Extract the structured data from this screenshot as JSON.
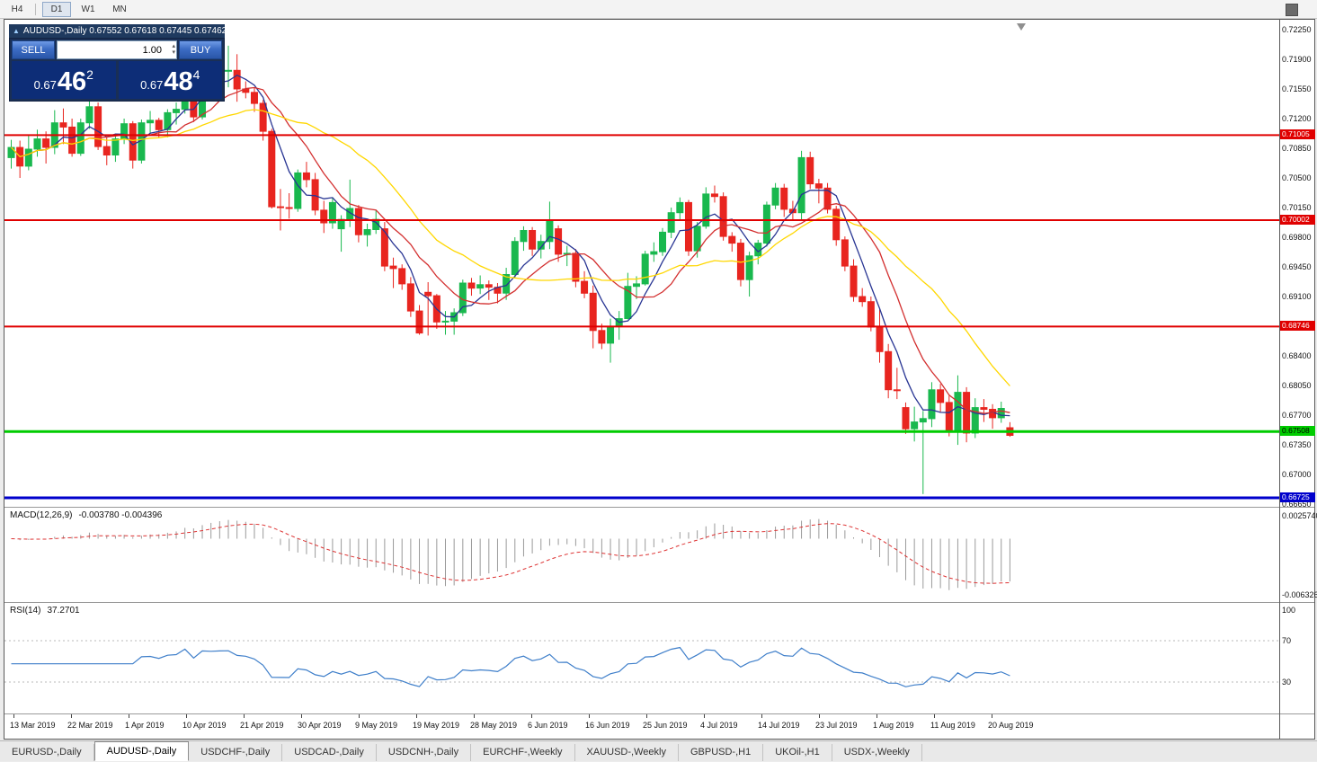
{
  "toolbar": {
    "timeframes": [
      {
        "label": "H4",
        "active": false
      },
      {
        "label": "D1",
        "active": true
      },
      {
        "label": "W1",
        "active": false
      },
      {
        "label": "MN",
        "active": false
      }
    ]
  },
  "window": {
    "title": "AUDUSD-,Daily 0.67552 0.67618 0.67445 0.67462"
  },
  "icons": {
    "chart_icon": "▲",
    "spinner_up_icon": "▴",
    "spinner_down_icon": "▾"
  },
  "trade_panel": {
    "sell_label": "SELL",
    "buy_label": "BUY",
    "volume": "1.00",
    "sell_price": {
      "prefix": "0.67",
      "big": "46",
      "sup": "2"
    },
    "buy_price": {
      "prefix": "0.67",
      "big": "48",
      "sup": "4"
    }
  },
  "chart_data": {
    "type": "candlestick",
    "symbol": "AUDUSD-",
    "timeframe": "Daily",
    "last_ohlc": {
      "open": 0.67552,
      "high": 0.67618,
      "low": 0.67445,
      "close": 0.67462
    },
    "up_color": "#19b84e",
    "down_color": "#e8251f",
    "candles": [
      [
        0.7074,
        0.7095,
        0.7061,
        0.7086
      ],
      [
        0.7086,
        0.7094,
        0.705,
        0.7064
      ],
      [
        0.7064,
        0.71,
        0.7059,
        0.7084
      ],
      [
        0.7084,
        0.7107,
        0.7075,
        0.7096
      ],
      [
        0.7096,
        0.7105,
        0.7067,
        0.7086
      ],
      [
        0.7086,
        0.713,
        0.7078,
        0.7115
      ],
      [
        0.7115,
        0.7132,
        0.709,
        0.711
      ],
      [
        0.711,
        0.712,
        0.7075,
        0.7079
      ],
      [
        0.7079,
        0.712,
        0.7076,
        0.7115
      ],
      [
        0.7115,
        0.7147,
        0.7108,
        0.7134
      ],
      [
        0.7134,
        0.7139,
        0.7083,
        0.7087
      ],
      [
        0.7087,
        0.7098,
        0.7065,
        0.7077
      ],
      [
        0.7077,
        0.71,
        0.7069,
        0.7096
      ],
      [
        0.7096,
        0.712,
        0.709,
        0.7114
      ],
      [
        0.7114,
        0.7117,
        0.7061,
        0.7071
      ],
      [
        0.7071,
        0.7119,
        0.7067,
        0.7115
      ],
      [
        0.7115,
        0.7129,
        0.7102,
        0.7118
      ],
      [
        0.7118,
        0.7121,
        0.7098,
        0.7107
      ],
      [
        0.7107,
        0.7131,
        0.7098,
        0.7127
      ],
      [
        0.7127,
        0.7139,
        0.7113,
        0.7131
      ],
      [
        0.7131,
        0.7174,
        0.7126,
        0.7168
      ],
      [
        0.7168,
        0.7173,
        0.7116,
        0.7122
      ],
      [
        0.7122,
        0.7179,
        0.7119,
        0.7175
      ],
      [
        0.7175,
        0.7195,
        0.7165,
        0.7173
      ],
      [
        0.7173,
        0.7185,
        0.7154,
        0.7176
      ],
      [
        0.7176,
        0.7206,
        0.7157,
        0.7177
      ],
      [
        0.7177,
        0.7196,
        0.714,
        0.7155
      ],
      [
        0.7155,
        0.7164,
        0.7144,
        0.7151
      ],
      [
        0.7151,
        0.7156,
        0.7128,
        0.7138
      ],
      [
        0.7138,
        0.7142,
        0.7094,
        0.7105
      ],
      [
        0.7105,
        0.7108,
        0.7014,
        0.7016
      ],
      [
        0.7016,
        0.7037,
        0.6988,
        0.7015
      ],
      [
        0.7015,
        0.7032,
        0.7002,
        0.7014
      ],
      [
        0.7014,
        0.706,
        0.701,
        0.7056
      ],
      [
        0.7056,
        0.7069,
        0.7039,
        0.7048
      ],
      [
        0.7048,
        0.7056,
        0.7006,
        0.7012
      ],
      [
        0.7012,
        0.7023,
        0.6985,
        0.6997
      ],
      [
        0.6997,
        0.7027,
        0.699,
        0.7021
      ],
      [
        0.699,
        0.7006,
        0.6963,
        0.7001
      ],
      [
        0.7001,
        0.7048,
        0.6992,
        0.7014
      ],
      [
        0.7014,
        0.7018,
        0.6974,
        0.6983
      ],
      [
        0.6983,
        0.6996,
        0.6969,
        0.6989
      ],
      [
        0.6989,
        0.7012,
        0.6984,
        0.7001
      ],
      [
        0.699,
        0.6998,
        0.694,
        0.6946
      ],
      [
        0.6946,
        0.6956,
        0.692,
        0.6943
      ],
      [
        0.6943,
        0.6948,
        0.6918,
        0.6925
      ],
      [
        0.6925,
        0.6933,
        0.6886,
        0.6893
      ],
      [
        0.6893,
        0.69,
        0.6865,
        0.6867
      ],
      [
        0.6915,
        0.6927,
        0.6864,
        0.6911
      ],
      [
        0.6911,
        0.6913,
        0.6872,
        0.688
      ],
      [
        0.688,
        0.6893,
        0.6865,
        0.6881
      ],
      [
        0.6881,
        0.6896,
        0.6865,
        0.6891
      ],
      [
        0.6891,
        0.693,
        0.6887,
        0.6926
      ],
      [
        0.6926,
        0.6932,
        0.6911,
        0.692
      ],
      [
        0.692,
        0.6935,
        0.6913,
        0.6924
      ],
      [
        0.6924,
        0.6929,
        0.6906,
        0.6921
      ],
      [
        0.6921,
        0.6926,
        0.6902,
        0.6914
      ],
      [
        0.6914,
        0.6944,
        0.6906,
        0.6936
      ],
      [
        0.6936,
        0.698,
        0.6932,
        0.6975
      ],
      [
        0.6975,
        0.6993,
        0.6964,
        0.6988
      ],
      [
        0.6988,
        0.6992,
        0.6958,
        0.6966
      ],
      [
        0.6966,
        0.6983,
        0.6955,
        0.6975
      ],
      [
        0.6975,
        0.7022,
        0.6966,
        0.7
      ],
      [
        0.699,
        0.6994,
        0.6951,
        0.696
      ],
      [
        0.696,
        0.697,
        0.6946,
        0.6961
      ],
      [
        0.6961,
        0.6966,
        0.6921,
        0.6928
      ],
      [
        0.6928,
        0.694,
        0.6908,
        0.6914
      ],
      [
        0.6914,
        0.6923,
        0.6849,
        0.687
      ],
      [
        0.687,
        0.6878,
        0.6848,
        0.6855
      ],
      [
        0.6855,
        0.6884,
        0.6832,
        0.6875
      ],
      [
        0.6875,
        0.6893,
        0.6859,
        0.6884
      ],
      [
        0.6884,
        0.6938,
        0.6883,
        0.6922
      ],
      [
        0.6922,
        0.6934,
        0.6907,
        0.6925
      ],
      [
        0.6925,
        0.6964,
        0.6923,
        0.696
      ],
      [
        0.696,
        0.6974,
        0.6951,
        0.6963
      ],
      [
        0.6963,
        0.6991,
        0.6958,
        0.6986
      ],
      [
        0.6986,
        0.7015,
        0.6979,
        0.7009
      ],
      [
        0.7009,
        0.7027,
        0.7001,
        0.7021
      ],
      [
        0.7021,
        0.7024,
        0.6958,
        0.6964
      ],
      [
        0.6964,
        0.6998,
        0.6956,
        0.6993
      ],
      [
        0.6993,
        0.7039,
        0.699,
        0.7031
      ],
      [
        0.7031,
        0.7041,
        0.7021,
        0.7028
      ],
      [
        0.7028,
        0.7033,
        0.6976,
        0.6981
      ],
      [
        0.6981,
        0.6986,
        0.6963,
        0.6973
      ],
      [
        0.6973,
        0.6978,
        0.6922,
        0.693
      ],
      [
        0.693,
        0.6963,
        0.691,
        0.6958
      ],
      [
        0.6958,
        0.6977,
        0.6948,
        0.6973
      ],
      [
        0.6973,
        0.7022,
        0.6969,
        0.7018
      ],
      [
        0.7018,
        0.7044,
        0.7013,
        0.7038
      ],
      [
        0.7038,
        0.7043,
        0.7004,
        0.7013
      ],
      [
        0.7013,
        0.7023,
        0.7,
        0.7009
      ],
      [
        0.7009,
        0.7082,
        0.7001,
        0.7074
      ],
      [
        0.7074,
        0.7081,
        0.7037,
        0.7043
      ],
      [
        0.7043,
        0.7049,
        0.702,
        0.7038
      ],
      [
        0.7038,
        0.7044,
        0.7008,
        0.7013
      ],
      [
        0.7013,
        0.7017,
        0.697,
        0.6977
      ],
      [
        0.6977,
        0.6981,
        0.694,
        0.6946
      ],
      [
        0.6946,
        0.6954,
        0.6904,
        0.691
      ],
      [
        0.691,
        0.692,
        0.6898,
        0.6904
      ],
      [
        0.6904,
        0.691,
        0.6869,
        0.6874
      ],
      [
        0.6874,
        0.6895,
        0.6832,
        0.6845
      ],
      [
        0.6845,
        0.6854,
        0.679,
        0.68
      ],
      [
        0.68,
        0.6826,
        0.6789,
        0.6799
      ],
      [
        0.6779,
        0.6785,
        0.6748,
        0.6754
      ],
      [
        0.6754,
        0.678,
        0.6739,
        0.6762
      ],
      [
        0.6762,
        0.6775,
        0.6677,
        0.6766
      ],
      [
        0.6766,
        0.6809,
        0.6756,
        0.68
      ],
      [
        0.68,
        0.6807,
        0.6774,
        0.6785
      ],
      [
        0.6785,
        0.6793,
        0.6745,
        0.6752
      ],
      [
        0.6752,
        0.6817,
        0.6735,
        0.6797
      ],
      [
        0.6797,
        0.6803,
        0.6738,
        0.6749
      ],
      [
        0.6749,
        0.679,
        0.6743,
        0.6779
      ],
      [
        0.6779,
        0.6789,
        0.6762,
        0.6777
      ],
      [
        0.6777,
        0.6783,
        0.6754,
        0.6767
      ],
      [
        0.6767,
        0.6786,
        0.6761,
        0.6778
      ],
      [
        0.67552,
        0.67618,
        0.67445,
        0.67462
      ]
    ],
    "moving_averages": [
      {
        "period": 5,
        "color": "#283593"
      },
      {
        "period": 10,
        "color": "#d32f2f"
      },
      {
        "period": 20,
        "color": "#ffd700"
      }
    ],
    "hlines": [
      {
        "price": 0.71005,
        "label": "0.71005",
        "color": "#e00000",
        "width": 2,
        "text_color": "#ffffff"
      },
      {
        "price": 0.70002,
        "label": "0.70002",
        "color": "#e00000",
        "width": 2,
        "text_color": "#ffffff"
      },
      {
        "price": 0.68746,
        "label": "0.68746",
        "color": "#e00000",
        "width": 2,
        "text_color": "#ffffff"
      },
      {
        "price": 0.67508,
        "label": "0.67508",
        "color": "#00cc00",
        "width": 3,
        "text_color": "#000000"
      },
      {
        "price": 0.66725,
        "label": "0.66725",
        "color": "#0000cc",
        "width": 3,
        "text_color": "#ffffff"
      }
    ],
    "price_axis_labels": [
      "0.72250",
      "0.71900",
      "0.71550",
      "0.71200",
      "0.70850",
      "0.70500",
      "0.70150",
      "0.69800",
      "0.69450",
      "0.69100",
      "0.68400",
      "0.68050",
      "0.67700",
      "0.67350",
      "0.67000",
      "0.66650"
    ],
    "time_axis_labels": [
      "13 Mar 2019",
      "22 Mar 2019",
      "1 Apr 2019",
      "10 Apr 2019",
      "21 Apr 2019",
      "30 Apr 2019",
      "9 May 2019",
      "19 May 2019",
      "28 May 2019",
      "6 Jun 2019",
      "16 Jun 2019",
      "25 Jun 2019",
      "4 Jul 2019",
      "14 Jul 2019",
      "23 Jul 2019",
      "1 Aug 2019",
      "11 Aug 2019",
      "20 Aug 2019"
    ]
  },
  "macd_panel": {
    "label": "MACD(12,26,9)",
    "values": "-0.003780 -0.004396",
    "axis_labels": [
      "0.0025740",
      "-0.0063260"
    ],
    "histogram_color": "#9a9a9a",
    "signal_color": "#dd3333"
  },
  "rsi_panel": {
    "label": "RSI(14)",
    "value": "37.2701",
    "axis_labels": [
      "100",
      "70",
      "30"
    ],
    "levels": [
      70,
      30
    ],
    "level_color": "#b8b8b8",
    "line_color": "#3f7fca"
  },
  "tabs": [
    {
      "label": "EURUSD-,Daily",
      "active": false
    },
    {
      "label": "AUDUSD-,Daily",
      "active": true
    },
    {
      "label": "USDCHF-,Daily",
      "active": false
    },
    {
      "label": "USDCAD-,Daily",
      "active": false
    },
    {
      "label": "USDCNH-,Daily",
      "active": false
    },
    {
      "label": "EURCHF-,Weekly",
      "active": false
    },
    {
      "label": "XAUUSD-,Weekly",
      "active": false
    },
    {
      "label": "GBPUSD-,H1",
      "active": false
    },
    {
      "label": "UKOil-,H1",
      "active": false
    },
    {
      "label": "USDX-,Weekly",
      "active": false
    }
  ]
}
